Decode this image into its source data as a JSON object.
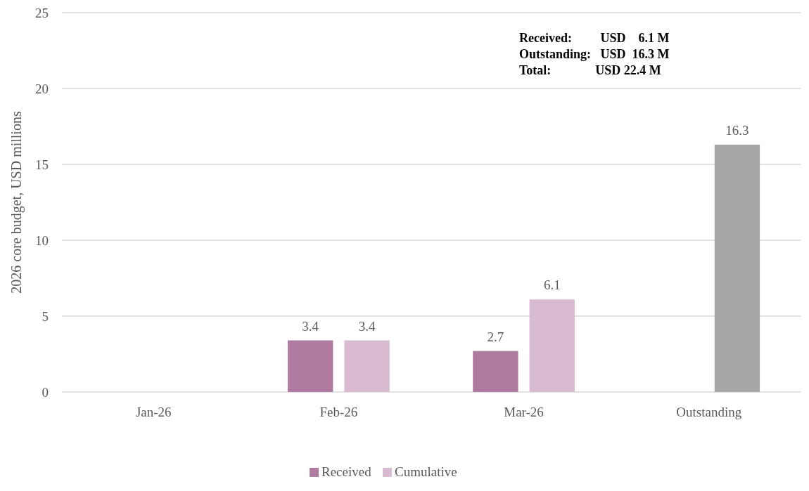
{
  "chart_data": {
    "type": "bar",
    "ylabel": "2026 core budget, USD millions",
    "categories": [
      "Jan-26",
      "Feb-26",
      "Mar-26",
      "Outstanding"
    ],
    "series": [
      {
        "name": "Received",
        "color": "#b07ba1",
        "values": [
          null,
          3.4,
          2.7,
          null
        ]
      },
      {
        "name": "Cumulative",
        "color": "#d8bbd0",
        "colors": [
          null,
          "#d8bbd0",
          "#d8bbd0",
          "#a6a6a6"
        ],
        "values": [
          null,
          3.4,
          6.1,
          16.3
        ]
      }
    ],
    "ylim": [
      0,
      25
    ],
    "yticks": [
      0,
      5,
      10,
      15,
      20,
      25
    ],
    "grid": "y",
    "legend": "bottom",
    "data_labels": true,
    "annotations": [
      "Received:         USD    6.1 M",
      "Outstanding:   USD  16.3 M",
      "Total:              USD 22.4 M"
    ]
  }
}
